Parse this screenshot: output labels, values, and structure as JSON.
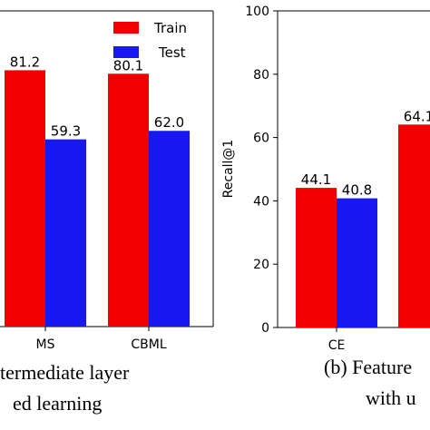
{
  "colors": {
    "train": "#f00000",
    "test": "#1818f0"
  },
  "chart_data": [
    {
      "type": "bar",
      "categories": [
        "MS",
        "CBML"
      ],
      "series": [
        {
          "name": "Train",
          "values": [
            81.2,
            80.1
          ]
        },
        {
          "name": "Test",
          "values": [
            59.3,
            62.0
          ]
        }
      ],
      "data_labels": [
        [
          "81.2",
          "80.1"
        ],
        [
          "59.3",
          "62.0"
        ]
      ],
      "ylim": [
        0,
        100
      ],
      "legend": "top-right",
      "caption": [
        "termediate layer",
        "ed learning"
      ]
    },
    {
      "type": "bar",
      "categories": [
        "CE",
        ""
      ],
      "series": [
        {
          "values": [
            44.1,
            64.1
          ]
        },
        {
          "values": [
            40.8,
            null
          ]
        }
      ],
      "data_labels": [
        [
          "44.1",
          "64.1"
        ],
        [
          "40.8",
          ""
        ]
      ],
      "ylabel": "Recall@1",
      "ylim": [
        0,
        100
      ],
      "yticks": [
        "0",
        "20",
        "40",
        "60",
        "80",
        "100"
      ],
      "caption": [
        "(b) Feature",
        "with u"
      ]
    }
  ]
}
